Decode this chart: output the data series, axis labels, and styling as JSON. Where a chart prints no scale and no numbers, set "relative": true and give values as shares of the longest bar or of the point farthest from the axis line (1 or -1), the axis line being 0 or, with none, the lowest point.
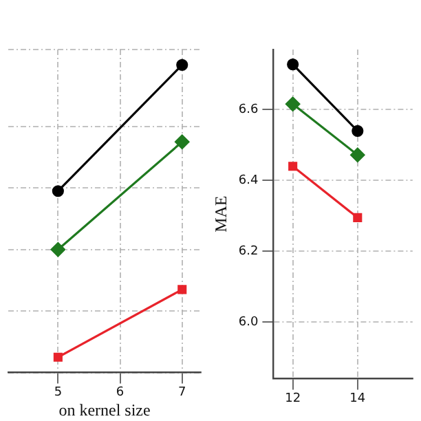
{
  "chart_data": [
    {
      "type": "line",
      "xlabel": "on kernel size",
      "relative": true,
      "xlim": [
        4.2,
        7.3
      ],
      "xticks": [
        5,
        6,
        7
      ],
      "tick_labels": "x",
      "grid": true,
      "legend": false,
      "series": [
        {
          "color": "#000000",
          "marker": "circle",
          "x": [
            5,
            7
          ],
          "values": [
            0.59,
            1
          ]
        },
        {
          "color": "#1f7a1f",
          "marker": "diamond",
          "x": [
            5,
            7
          ],
          "values": [
            0.4,
            0.75
          ]
        },
        {
          "color": "#e8232b",
          "marker": "square",
          "x": [
            5,
            7
          ],
          "values": [
            0.05,
            0.27
          ]
        }
      ]
    },
    {
      "type": "line",
      "ylabel": "MAE",
      "xlim": [
        11.4,
        15.7
      ],
      "xticks": [
        12,
        14
      ],
      "ylim": [
        5.84,
        6.77
      ],
      "yticks": [
        {
          "value": 6,
          "label": "6.0"
        },
        {
          "value": 6.2,
          "label": "6.2"
        },
        {
          "value": 6.4,
          "label": "6.4"
        },
        {
          "value": 6.6,
          "label": "6.6"
        }
      ],
      "grid": true,
      "legend": false,
      "series": [
        {
          "color": "#000000",
          "marker": "circle",
          "x": [
            12,
            14
          ],
          "values": [
            6.728,
            6.54
          ]
        },
        {
          "color": "#1f7a1f",
          "marker": "diamond",
          "x": [
            12,
            14
          ],
          "values": [
            6.616,
            6.472
          ]
        },
        {
          "color": "#e8232b",
          "marker": "square",
          "x": [
            12,
            14
          ],
          "values": [
            6.44,
            6.295
          ]
        }
      ]
    }
  ]
}
